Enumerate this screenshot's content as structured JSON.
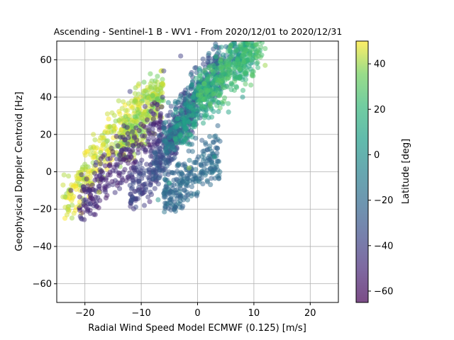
{
  "chart_data": {
    "type": "scatter",
    "title": "Ascending - Sentinel-1 B - WV1 - From 2020/12/01 to 2020/12/31",
    "xlabel": "Radial Wind Speed Model ECMWF (0.125) [m/s]",
    "ylabel": "Geophysical Doppler Centroid [Hz]",
    "xlim": [
      -25,
      25
    ],
    "ylim": [
      -70,
      70
    ],
    "xticks": [
      -20,
      -10,
      0,
      10,
      20
    ],
    "yticks": [
      -60,
      -40,
      -20,
      0,
      20,
      40,
      60
    ],
    "grid": true,
    "marker_alpha": 0.5,
    "colorbar": {
      "label": "Latitude [deg]",
      "range": [
        -65,
        50
      ],
      "ticks": [
        -60,
        -40,
        -20,
        0,
        20,
        40
      ],
      "colormap": "viridis"
    },
    "cloud_bands": [
      {
        "latitude": 45,
        "x_range": [
          -24,
          -10
        ],
        "y_range": [
          -19,
          38
        ]
      },
      {
        "latitude": 40,
        "x_range": [
          -14,
          -6
        ],
        "y_range": [
          10,
          45
        ]
      },
      {
        "latitude": -50,
        "x_range": [
          -21,
          -6
        ],
        "y_range": [
          -20,
          30
        ]
      },
      {
        "latitude": -40,
        "x_range": [
          -12,
          0
        ],
        "y_range": [
          -16,
          40
        ]
      },
      {
        "latitude": -30,
        "x_range": [
          -8,
          4
        ],
        "y_range": [
          0,
          62
        ]
      },
      {
        "latitude": -10,
        "x_range": [
          -6,
          8
        ],
        "y_range": [
          15,
          70
        ]
      },
      {
        "latitude": 10,
        "x_range": [
          -4,
          10
        ],
        "y_range": [
          20,
          70
        ]
      },
      {
        "latitude": 25,
        "x_range": [
          0,
          12
        ],
        "y_range": [
          40,
          70
        ]
      },
      {
        "latitude": -20,
        "x_range": [
          -6,
          4
        ],
        "y_range": [
          -16,
          10
        ]
      }
    ],
    "points": [
      {
        "x": -23.5,
        "y": -19,
        "lat": 45
      },
      {
        "x": -22.5,
        "y": -10,
        "lat": -55
      },
      {
        "x": -21.0,
        "y": -18,
        "lat": 45
      },
      {
        "x": -20.0,
        "y": 4,
        "lat": 40
      },
      {
        "x": -19.5,
        "y": -20,
        "lat": -50
      },
      {
        "x": -19.0,
        "y": 13,
        "lat": 42
      },
      {
        "x": -18.5,
        "y": 20,
        "lat": 45
      },
      {
        "x": -18.0,
        "y": 5,
        "lat": -40
      },
      {
        "x": -17.5,
        "y": -11,
        "lat": 44
      },
      {
        "x": -16.0,
        "y": 31,
        "lat": 45
      },
      {
        "x": -15.5,
        "y": 24,
        "lat": 40
      },
      {
        "x": -14.0,
        "y": 38,
        "lat": 42
      },
      {
        "x": -12.0,
        "y": 43,
        "lat": -40
      },
      {
        "x": -11.0,
        "y": 45,
        "lat": 40
      },
      {
        "x": -9.5,
        "y": 48,
        "lat": 35
      },
      {
        "x": -8.5,
        "y": -16,
        "lat": -50
      },
      {
        "x": -7.0,
        "y": -15,
        "lat": 0
      },
      {
        "x": -6.0,
        "y": 54,
        "lat": -40
      },
      {
        "x": -5.0,
        "y": -6,
        "lat": 10
      },
      {
        "x": -3.0,
        "y": 62,
        "lat": -40
      },
      {
        "x": -1.5,
        "y": 2,
        "lat": 40
      },
      {
        "x": 3.0,
        "y": 8,
        "lat": 10
      },
      {
        "x": 5.5,
        "y": 32,
        "lat": 10
      },
      {
        "x": 6.0,
        "y": 44,
        "lat": 20
      },
      {
        "x": 8.0,
        "y": 40,
        "lat": 5
      },
      {
        "x": 8.5,
        "y": 47,
        "lat": 30
      },
      {
        "x": 10.5,
        "y": 58,
        "lat": 15
      },
      {
        "x": 12.0,
        "y": 57,
        "lat": 40
      },
      {
        "x": 12.0,
        "y": 66,
        "lat": 30
      },
      {
        "x": 11.0,
        "y": 70,
        "lat": 25
      }
    ]
  }
}
